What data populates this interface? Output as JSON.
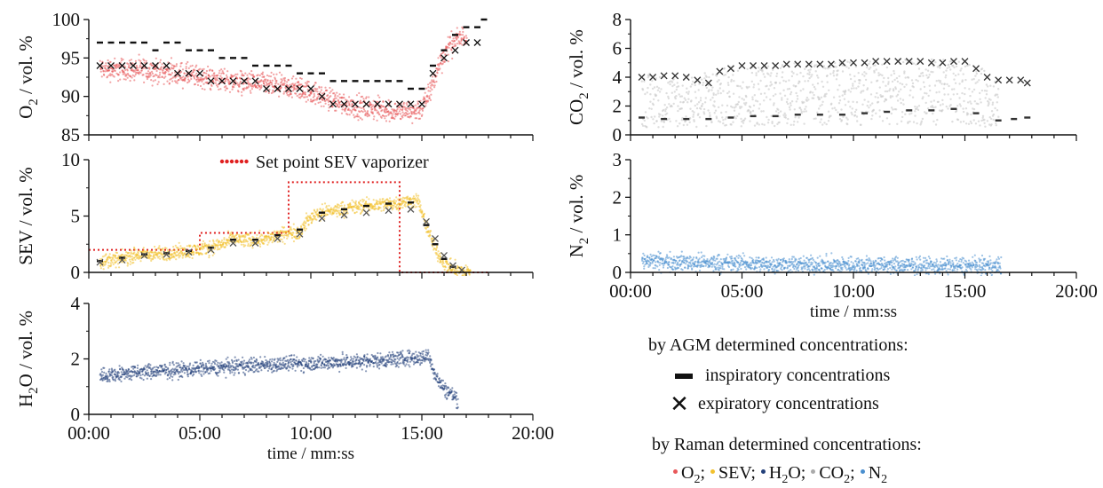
{
  "chart_data": [
    {
      "id": "o2",
      "type": "scatter",
      "ylabel_main": "O",
      "ylabel_sub": "2",
      "ylabel_rest": " / vol. %",
      "ylim": [
        85,
        100
      ],
      "yticks": [
        "85",
        "90",
        "95",
        "100"
      ],
      "xlim": [
        0,
        20
      ],
      "xticks": [
        "00:00",
        "05:00",
        "10:00",
        "15:00",
        "20:00"
      ],
      "show_xticklabels": false,
      "series": [
        {
          "kind": "raman",
          "color": "#e8585a",
          "band": 1.6,
          "x": [
            0.5,
            2,
            3.5,
            5,
            6.5,
            8,
            9.5,
            10.5,
            11.5,
            12.5,
            13.5,
            14.5,
            15,
            15.4,
            15.8,
            16.2,
            16.6,
            17
          ],
          "y": [
            93.5,
            93.5,
            93.2,
            92.5,
            92,
            91.5,
            91,
            90,
            89,
            88.5,
            88.2,
            88,
            88.5,
            91,
            94.5,
            96.5,
            97.5,
            97.8
          ]
        },
        {
          "kind": "inspiratory",
          "color": "#111111",
          "x": [
            0.5,
            1,
            1.5,
            2,
            2.5,
            3,
            3.5,
            4,
            4.5,
            5,
            5.5,
            6,
            6.5,
            7,
            7.5,
            8,
            8.5,
            9,
            9.5,
            10,
            10.5,
            11,
            11.5,
            12,
            12.5,
            13,
            13.5,
            14,
            14.5,
            15,
            15.5,
            16,
            16.5,
            17,
            17.5,
            17.8
          ],
          "y": [
            97,
            97,
            97,
            97,
            97,
            96,
            97,
            97,
            96,
            96,
            96,
            95,
            95,
            95,
            94,
            94,
            94,
            94,
            93,
            93,
            93,
            92,
            92,
            92,
            92,
            92,
            92,
            92,
            91,
            91,
            94,
            96,
            98,
            99,
            99,
            100
          ]
        },
        {
          "kind": "expiratory",
          "color": "#111111",
          "x": [
            0.5,
            1,
            1.5,
            2,
            2.5,
            3,
            3.5,
            4,
            4.5,
            5,
            5.5,
            6,
            6.5,
            7,
            7.5,
            8,
            8.5,
            9,
            9.5,
            10,
            10.5,
            11,
            11.5,
            12,
            12.5,
            13,
            13.5,
            14,
            14.5,
            15,
            15.5,
            16,
            16.5,
            17,
            17.5
          ],
          "y": [
            94,
            94,
            94,
            94,
            94,
            94,
            94,
            93,
            93,
            93,
            92,
            92,
            92,
            92,
            92,
            91,
            91,
            91,
            91,
            91,
            90,
            89,
            89,
            89,
            89,
            89,
            89,
            89,
            89,
            89,
            93,
            95,
            96,
            97,
            97
          ]
        }
      ]
    },
    {
      "id": "sev",
      "type": "scatter",
      "ylabel_main": "SEV / vol. %",
      "ylabel_sub": "",
      "ylabel_rest": "",
      "ylim": [
        0,
        10
      ],
      "yticks": [
        "0",
        "5",
        "10"
      ],
      "xlim": [
        0,
        20
      ],
      "xticks": [
        "00:00",
        "05:00",
        "10:00",
        "15:00",
        "20:00"
      ],
      "show_xticklabels": false,
      "annotation": "Set point SEV vaporizer",
      "series": [
        {
          "kind": "setpoint",
          "color": "#e02020",
          "x": [
            0,
            5,
            5,
            9,
            9,
            14,
            14,
            18
          ],
          "y": [
            2,
            2,
            3.5,
            3.5,
            8,
            8,
            0,
            0
          ]
        },
        {
          "kind": "raman",
          "color": "#f2c12e",
          "band": 0.7,
          "x": [
            0.5,
            1.5,
            2,
            3,
            4,
            5,
            6,
            6.5,
            7,
            8,
            8.5,
            9,
            9.5,
            9.8,
            10.2,
            11,
            12,
            13,
            14,
            14.8,
            15.2,
            15.6,
            16,
            16.4,
            16.8,
            17.2
          ],
          "y": [
            1,
            1.2,
            1.5,
            1.6,
            1.8,
            2,
            2.5,
            3,
            2.8,
            3,
            3.2,
            3.5,
            3.6,
            4.5,
            5.2,
            5.5,
            5.8,
            6,
            6.2,
            6.4,
            4,
            2,
            0.8,
            0.3,
            0.1,
            0
          ]
        },
        {
          "kind": "inspiratory",
          "color": "#111111",
          "x": [
            0.5,
            1.5,
            2.5,
            3.5,
            4.5,
            5.5,
            6.5,
            7.5,
            8.5,
            9.5,
            10.5,
            11.5,
            12.5,
            13.5,
            14.5,
            15.2,
            15.6,
            16,
            16.4
          ],
          "y": [
            1,
            1.3,
            1.6,
            1.7,
            1.9,
            2.2,
            2.9,
            2.9,
            3.3,
            3.8,
            5.3,
            5.6,
            5.9,
            6.1,
            6.2,
            4.2,
            2.5,
            1.2,
            0.5
          ]
        },
        {
          "kind": "expiratory",
          "color": "#555555",
          "x": [
            0.5,
            1.5,
            2.5,
            3.5,
            4.5,
            5.5,
            6.5,
            7.5,
            8.5,
            9.5,
            10.5,
            11.5,
            12.5,
            13.5,
            14.5,
            15.2,
            15.6,
            16,
            16.4,
            16.8
          ],
          "y": [
            0.9,
            1.1,
            1.5,
            1.6,
            1.8,
            2,
            2.6,
            2.6,
            3,
            3.4,
            4.8,
            5.1,
            5.3,
            5.5,
            5.6,
            4.5,
            3,
            1.5,
            0.6,
            0.2
          ]
        }
      ]
    },
    {
      "id": "h2o",
      "type": "scatter",
      "ylabel_main": "H",
      "ylabel_sub": "2",
      "ylabel_rest": "O / vol. %",
      "ylim": [
        0,
        4
      ],
      "yticks": [
        "0",
        "2",
        "4"
      ],
      "xlim": [
        0,
        20
      ],
      "xticks": [
        "00:00",
        "05:00",
        "10:00",
        "15:00",
        "20:00"
      ],
      "show_xticklabels": true,
      "xlabel": "time / mm:ss",
      "series": [
        {
          "kind": "raman",
          "color": "#23407a",
          "band": 0.3,
          "x": [
            0.5,
            2,
            4,
            6,
            8,
            10,
            12,
            14,
            15,
            15.3,
            15.6,
            16,
            16.4,
            16.6
          ],
          "y": [
            1.4,
            1.5,
            1.6,
            1.7,
            1.8,
            1.85,
            1.9,
            2,
            2.05,
            2.1,
            1.4,
            0.9,
            0.7,
            0.5
          ]
        }
      ]
    },
    {
      "id": "co2",
      "type": "scatter",
      "ylabel_main": "CO",
      "ylabel_sub": "2",
      "ylabel_rest": " / vol. %",
      "ylim": [
        0,
        8
      ],
      "yticks": [
        "0",
        "2",
        "4",
        "6",
        "8"
      ],
      "xlim": [
        0,
        20
      ],
      "xticks": [
        "00:00",
        "05:00",
        "10:00",
        "15:00",
        "20:00"
      ],
      "show_xticklabels": false,
      "series": [
        {
          "kind": "raman_fill",
          "color": "#c8c8c8",
          "x": [
            0.5,
            3,
            3.5,
            5,
            8,
            11,
            14,
            15.5,
            16.5
          ],
          "ylow": [
            0.5,
            0.5,
            0.5,
            0.6,
            0.6,
            0.7,
            0.7,
            0.6,
            0.5
          ],
          "yhigh": [
            4.3,
            4.1,
            4.5,
            4.9,
            5,
            5.2,
            5.3,
            4.8,
            4
          ]
        },
        {
          "kind": "expiratory",
          "color": "#333333",
          "x": [
            0.5,
            1,
            1.5,
            2,
            2.5,
            3,
            3.5,
            4,
            4.5,
            5,
            5.5,
            6,
            6.5,
            7,
            7.5,
            8,
            8.5,
            9,
            9.5,
            10,
            10.5,
            11,
            11.5,
            12,
            12.5,
            13,
            13.5,
            14,
            14.5,
            15,
            15.5,
            16,
            16.5,
            17,
            17.5,
            17.8
          ],
          "y": [
            4,
            4,
            4.1,
            4.1,
            4,
            3.8,
            3.6,
            4.4,
            4.6,
            4.8,
            4.8,
            4.8,
            4.8,
            4.9,
            4.9,
            4.9,
            4.9,
            4.9,
            5,
            5,
            5,
            5.1,
            5.1,
            5.1,
            5.1,
            5.1,
            5,
            5,
            5.1,
            5.1,
            4.6,
            4,
            3.8,
            3.8,
            3.8,
            3.6
          ]
        },
        {
          "kind": "inspiratory",
          "color": "#333333",
          "x": [
            0.5,
            1.5,
            2.5,
            3.5,
            4.5,
            5.5,
            6.5,
            7.5,
            8.5,
            9.5,
            10.5,
            11.5,
            12.5,
            13.5,
            14.5,
            15.5,
            16.5,
            17.2,
            17.8
          ],
          "y": [
            1.2,
            1.1,
            1.1,
            1.1,
            1.2,
            1.3,
            1.3,
            1.4,
            1.4,
            1.4,
            1.5,
            1.6,
            1.7,
            1.7,
            1.8,
            1.5,
            1,
            1.1,
            1.2
          ]
        }
      ]
    },
    {
      "id": "n2",
      "type": "scatter",
      "ylabel_main": "N",
      "ylabel_sub": "2",
      "ylabel_rest": " / vol. %",
      "ylim": [
        0,
        3
      ],
      "yticks": [
        "0",
        "1",
        "2",
        "3"
      ],
      "xlim": [
        0,
        20
      ],
      "xticks": [
        "00:00",
        "05:00",
        "10:00",
        "15:00",
        "20:00"
      ],
      "show_xticklabels": true,
      "xlabel": "time / mm:ss",
      "series": [
        {
          "kind": "raman",
          "color": "#4a8fcf",
          "band": 0.25,
          "x": [
            0.5,
            2,
            4,
            6,
            8,
            10,
            12,
            14,
            16,
            16.6
          ],
          "y": [
            0.3,
            0.28,
            0.25,
            0.22,
            0.2,
            0.2,
            0.18,
            0.17,
            0.17,
            0.17
          ]
        }
      ]
    }
  ],
  "legend": {
    "agm_title": "by AGM determined concentrations:",
    "inspiratory": "inspiratory concentrations",
    "expiratory": "expiratory concentrations",
    "raman_title": "by Raman determined concentrations:",
    "raman_items": [
      {
        "main": "O",
        "sub": "2",
        "rest": ";",
        "color": "#e8585a"
      },
      {
        "main": "SEV;",
        "sub": "",
        "rest": "",
        "color": "#f2c12e"
      },
      {
        "main": "H",
        "sub": "2",
        "rest": "O;",
        "color": "#23407a"
      },
      {
        "main": "CO",
        "sub": "2",
        "rest": ";",
        "color": "#aaaaaa"
      },
      {
        "main": "N",
        "sub": "2",
        "rest": "",
        "color": "#4a8fcf"
      }
    ]
  }
}
